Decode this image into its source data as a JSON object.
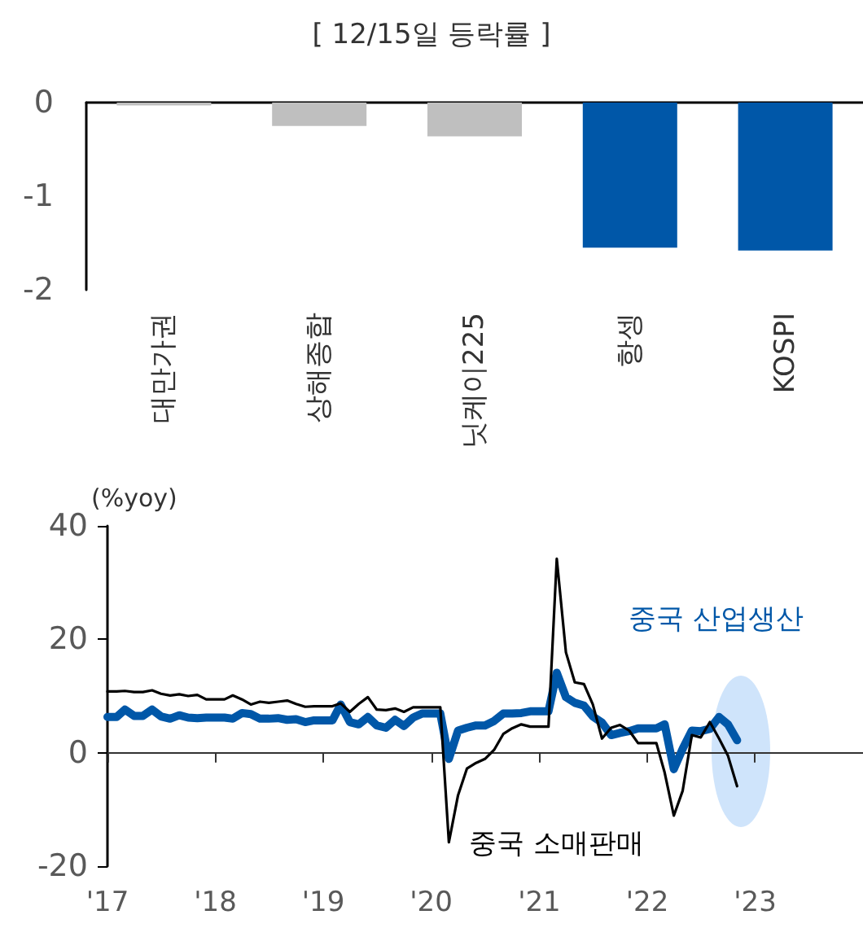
{
  "chart_data": [
    {
      "type": "bar",
      "title": "[ 12/15일 등락률 ]",
      "categories": [
        "대만가권",
        "상해종합",
        "닛케이225",
        "항셍",
        "KOSPI"
      ],
      "values": [
        -0.03,
        -0.25,
        -0.36,
        -1.55,
        -1.58
      ],
      "colors": [
        "#bfbfbf",
        "#bfbfbf",
        "#bfbfbf",
        "#0057a8",
        "#0057a8"
      ],
      "ylim": [
        -2,
        0
      ],
      "yticks": [
        -2,
        -1,
        0
      ],
      "grid": false,
      "legend": false
    },
    {
      "type": "line",
      "ylabel": "(%yoy)",
      "x": [
        "2017-01",
        "2017-02",
        "2017-03",
        "2017-04",
        "2017-05",
        "2017-06",
        "2017-07",
        "2017-08",
        "2017-09",
        "2017-10",
        "2017-11",
        "2017-12",
        "2018-01",
        "2018-02",
        "2018-03",
        "2018-04",
        "2018-05",
        "2018-06",
        "2018-07",
        "2018-08",
        "2018-09",
        "2018-10",
        "2018-11",
        "2018-12",
        "2019-01",
        "2019-02",
        "2019-03",
        "2019-04",
        "2019-05",
        "2019-06",
        "2019-07",
        "2019-08",
        "2019-09",
        "2019-10",
        "2019-11",
        "2019-12",
        "2020-01",
        "2020-02",
        "2020-03",
        "2020-04",
        "2020-05",
        "2020-06",
        "2020-07",
        "2020-08",
        "2020-09",
        "2020-10",
        "2020-11",
        "2020-12",
        "2021-01",
        "2021-02",
        "2021-03",
        "2021-04",
        "2021-05",
        "2021-06",
        "2021-07",
        "2021-08",
        "2021-09",
        "2021-10",
        "2021-11",
        "2021-12",
        "2022-01",
        "2022-02",
        "2022-03",
        "2022-04",
        "2022-05",
        "2022-06",
        "2022-07",
        "2022-08",
        "2022-09",
        "2022-10",
        "2022-11"
      ],
      "series": [
        {
          "name": "중국 산업생산",
          "color": "#0057a8",
          "values": [
            6.3,
            6.3,
            7.6,
            6.5,
            6.5,
            7.6,
            6.4,
            6.0,
            6.6,
            6.2,
            6.1,
            6.2,
            6.2,
            6.2,
            6.0,
            7.0,
            6.8,
            6.0,
            6.0,
            6.1,
            5.8,
            5.9,
            5.4,
            5.7,
            5.7,
            5.7,
            8.5,
            5.4,
            5.0,
            6.3,
            4.8,
            4.4,
            5.8,
            4.7,
            6.2,
            6.9,
            6.9,
            6.9,
            -1.1,
            3.9,
            4.4,
            4.8,
            4.8,
            5.6,
            6.9,
            6.9,
            7.0,
            7.3,
            7.3,
            7.3,
            14.1,
            9.8,
            8.8,
            8.3,
            6.4,
            5.3,
            3.1,
            3.5,
            3.8,
            4.3,
            4.3,
            4.3,
            5.0,
            -2.9,
            0.7,
            3.9,
            3.8,
            4.2,
            6.3,
            5.0,
            2.2
          ]
        },
        {
          "name": "중국 소매판매",
          "color": "#000000",
          "values": [
            10.8,
            10.8,
            10.9,
            10.7,
            10.7,
            11.0,
            10.4,
            10.1,
            10.3,
            10.0,
            10.2,
            9.4,
            9.4,
            9.4,
            10.1,
            9.4,
            8.5,
            9.0,
            8.8,
            9.0,
            9.2,
            8.6,
            8.1,
            8.2,
            8.2,
            8.2,
            8.7,
            7.2,
            8.6,
            9.8,
            7.6,
            7.5,
            7.8,
            7.2,
            8.0,
            8.0,
            8.0,
            8.0,
            -15.8,
            -7.5,
            -2.8,
            -1.8,
            -1.1,
            0.5,
            3.3,
            4.3,
            5.0,
            4.6,
            4.6,
            4.6,
            34.2,
            17.7,
            12.4,
            12.1,
            8.5,
            2.5,
            4.4,
            4.9,
            3.9,
            1.7,
            1.7,
            1.7,
            -3.5,
            -11.1,
            -6.7,
            3.1,
            2.7,
            5.4,
            2.5,
            -0.5,
            -5.9
          ]
        }
      ],
      "xlim": [
        "2017",
        "2024"
      ],
      "xticks": [
        {
          "value": "2017",
          "label": "'17"
        },
        {
          "value": "2018",
          "label": "'18"
        },
        {
          "value": "2019",
          "label": "'19"
        },
        {
          "value": "2020",
          "label": "'20"
        },
        {
          "value": "2021",
          "label": "'21"
        },
        {
          "value": "2022",
          "label": "'22"
        },
        {
          "value": "2023",
          "label": "'23"
        }
      ],
      "ylim": [
        -20,
        40
      ],
      "yticks": [
        -20,
        0,
        20,
        40
      ],
      "legend": false,
      "marker": "none",
      "line_style": "solid"
    }
  ]
}
